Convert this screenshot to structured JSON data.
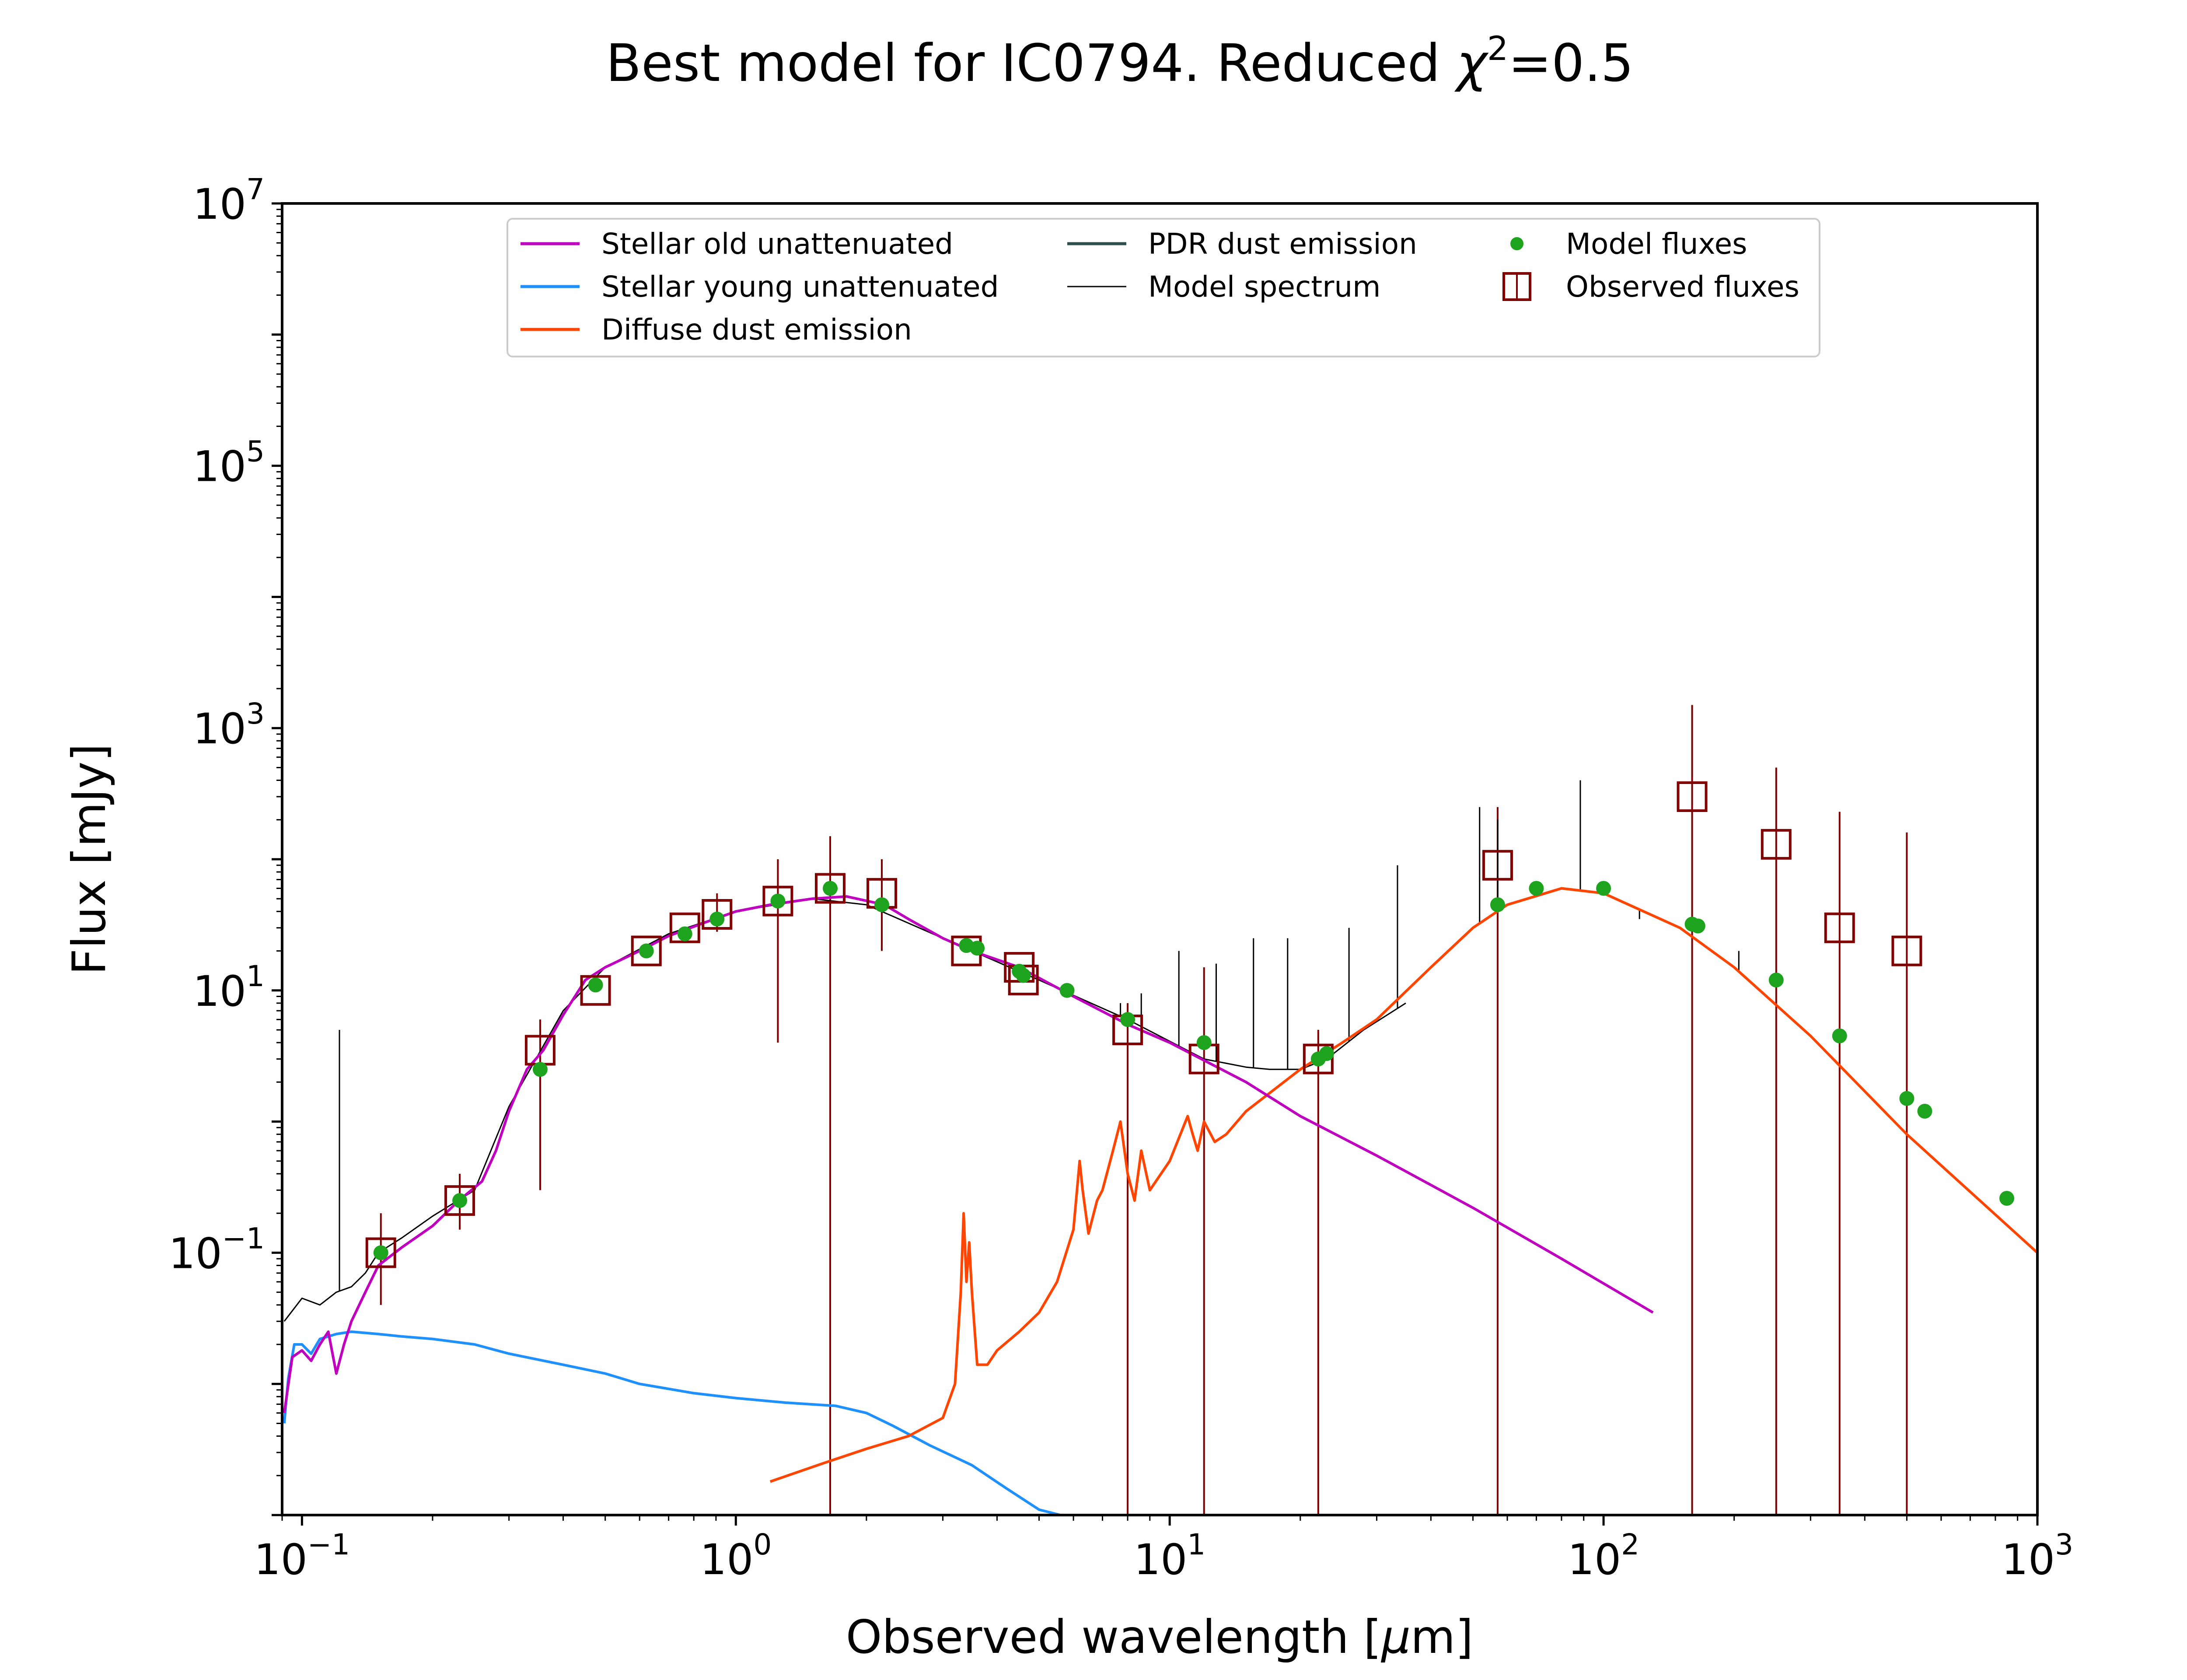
{
  "chart_data": {
    "type": "line",
    "title": "Best model for IC0794. Reduced χ²=0.5",
    "title_parts": {
      "prefix": "Best model for IC0794. Reduced ",
      "chi": "χ",
      "sup": "2",
      "suffix": "=0.5"
    },
    "xlabel": "Observed wavelength [μm]",
    "xlabel_parts": {
      "prefix": "Observed wavelength [",
      "mu": "μ",
      "suffix": "m]"
    },
    "ylabel": "Flux [mJy]",
    "xscale": "log",
    "yscale": "log",
    "xlim": [
      0.09,
      1000
    ],
    "ylim": [
      0.001,
      10000000
    ],
    "x_ticks": [
      {
        "value": 0.1,
        "base": "10",
        "exp": "−1"
      },
      {
        "value": 1,
        "base": "10",
        "exp": "0"
      },
      {
        "value": 10,
        "base": "10",
        "exp": "1"
      },
      {
        "value": 100,
        "base": "10",
        "exp": "2"
      },
      {
        "value": 1000,
        "base": "10",
        "exp": "3"
      }
    ],
    "y_ticks": [
      {
        "value": 0.1,
        "base": "10",
        "exp": "−1"
      },
      {
        "value": 10,
        "base": "10",
        "exp": "1"
      },
      {
        "value": 1000,
        "base": "10",
        "exp": "3"
      },
      {
        "value": 100000,
        "base": "10",
        "exp": "5"
      },
      {
        "value": 10000000,
        "base": "10",
        "exp": "7"
      }
    ],
    "grid": false,
    "legend_position": "top-center",
    "colors": {
      "stellar_old": "#bf00bf",
      "stellar_young": "#1e90ff",
      "diffuse_dust": "#ff4500",
      "pdr_dust": "#2f4f4f",
      "model_spectrum": "#000000",
      "model_fluxes": "#1ea31e",
      "observed_fluxes": "#800000"
    },
    "legend": [
      {
        "key": "stellar_old",
        "label": "Stellar old unattenuated",
        "kind": "line"
      },
      {
        "key": "stellar_young",
        "label": "Stellar young unattenuated",
        "kind": "line"
      },
      {
        "key": "diffuse_dust",
        "label": "Diffuse dust emission",
        "kind": "line"
      },
      {
        "key": "pdr_dust",
        "label": "PDR dust emission",
        "kind": "line"
      },
      {
        "key": "model_spectrum",
        "label": "Model spectrum",
        "kind": "thin-line"
      },
      {
        "key": "model_fluxes",
        "label": "Model fluxes",
        "kind": "dot"
      },
      {
        "key": "observed_fluxes",
        "label": "Observed fluxes",
        "kind": "square"
      }
    ],
    "series": [
      {
        "key": "stellar_old",
        "name": "Stellar old unattenuated",
        "x": [
          0.091,
          0.095,
          0.1,
          0.105,
          0.11,
          0.115,
          0.12,
          0.125,
          0.13,
          0.14,
          0.15,
          0.17,
          0.2,
          0.23,
          0.26,
          0.28,
          0.3,
          0.33,
          0.36,
          0.4,
          0.45,
          0.5,
          0.6,
          0.7,
          0.85,
          1.0,
          1.2,
          1.5,
          1.8,
          2.2,
          2.5,
          3.0,
          3.5,
          4.5,
          6.0,
          8.0,
          10,
          15,
          20,
          30,
          50,
          80,
          130
        ],
        "y": [
          0.006,
          0.016,
          0.018,
          0.015,
          0.02,
          0.025,
          0.012,
          0.02,
          0.03,
          0.05,
          0.08,
          0.11,
          0.16,
          0.25,
          0.35,
          0.6,
          1.2,
          2.5,
          3.5,
          6.5,
          12,
          15,
          20,
          26,
          33,
          40,
          45,
          50,
          52,
          45,
          35,
          25,
          20,
          15,
          9,
          5.5,
          4,
          2,
          1.1,
          0.55,
          0.22,
          0.09,
          0.035
        ]
      },
      {
        "key": "stellar_young",
        "name": "Stellar young unattenuated",
        "x": [
          0.091,
          0.093,
          0.096,
          0.1,
          0.105,
          0.11,
          0.12,
          0.13,
          0.15,
          0.17,
          0.2,
          0.25,
          0.3,
          0.4,
          0.5,
          0.6,
          0.8,
          1.0,
          1.3,
          1.7,
          2.0,
          2.3,
          2.8,
          3.5,
          4.2,
          5.0,
          5.6
        ],
        "y": [
          0.005,
          0.011,
          0.02,
          0.02,
          0.017,
          0.022,
          0.024,
          0.025,
          0.024,
          0.023,
          0.022,
          0.02,
          0.017,
          0.014,
          0.012,
          0.01,
          0.0085,
          0.0078,
          0.0072,
          0.0068,
          0.006,
          0.0048,
          0.0034,
          0.0024,
          0.0016,
          0.0011,
          0.001
        ]
      },
      {
        "key": "diffuse_dust",
        "name": "Diffuse dust emission",
        "x": [
          1.2,
          1.6,
          2.0,
          2.5,
          3.0,
          3.2,
          3.3,
          3.35,
          3.4,
          3.45,
          3.5,
          3.6,
          3.8,
          4.0,
          4.5,
          5.0,
          5.5,
          6.0,
          6.2,
          6.3,
          6.5,
          6.8,
          7.0,
          7.4,
          7.7,
          8.0,
          8.3,
          8.6,
          9.0,
          10,
          11,
          11.3,
          11.6,
          12.0,
          12.7,
          13.5,
          15,
          20,
          25,
          30,
          40,
          50,
          60,
          80,
          100,
          150,
          200,
          300,
          500,
          1000
        ],
        "y": [
          0.0018,
          0.0025,
          0.0032,
          0.004,
          0.0055,
          0.01,
          0.05,
          0.2,
          0.06,
          0.12,
          0.05,
          0.014,
          0.014,
          0.018,
          0.025,
          0.035,
          0.06,
          0.15,
          0.5,
          0.3,
          0.14,
          0.25,
          0.3,
          0.6,
          1.0,
          0.4,
          0.25,
          0.6,
          0.3,
          0.5,
          1.1,
          0.8,
          0.6,
          1.0,
          0.7,
          0.8,
          1.2,
          2.5,
          4,
          6,
          15,
          30,
          45,
          60,
          55,
          30,
          15,
          4.5,
          0.8,
          0.1
        ]
      },
      {
        "key": "model_spectrum",
        "name": "Model spectrum",
        "x": [
          0.091,
          0.1,
          0.11,
          0.12,
          0.13,
          0.14,
          0.15,
          0.17,
          0.2,
          0.25,
          0.3,
          0.4,
          0.5,
          0.7,
          1.0,
          1.5,
          2.0,
          3.0,
          5.0,
          8.0,
          12,
          15,
          17,
          20,
          23,
          28,
          35
        ],
        "y": [
          0.03,
          0.045,
          0.04,
          0.05,
          0.055,
          0.07,
          0.1,
          0.13,
          0.19,
          0.3,
          1.3,
          7,
          15,
          27,
          40,
          50,
          45,
          25,
          12,
          6,
          3,
          2.6,
          2.5,
          2.5,
          3,
          5,
          8
        ]
      }
    ],
    "emission_lines": [
      {
        "x": 0.122,
        "y": 5
      },
      {
        "x": 7.7,
        "y": 8
      },
      {
        "x": 8.6,
        "y": 9.5
      },
      {
        "x": 10.5,
        "y": 20
      },
      {
        "x": 12.8,
        "y": 16
      },
      {
        "x": 15.6,
        "y": 25
      },
      {
        "x": 18.7,
        "y": 25
      },
      {
        "x": 25.9,
        "y": 30
      },
      {
        "x": 33.5,
        "y": 90
      },
      {
        "x": 51.8,
        "y": 250
      },
      {
        "x": 57,
        "y": 200
      },
      {
        "x": 88.4,
        "y": 400
      },
      {
        "x": 121,
        "y": 35
      },
      {
        "x": 205,
        "y": 20
      }
    ],
    "model_fluxes": {
      "x": [
        0.152,
        0.231,
        0.354,
        0.475,
        0.622,
        0.763,
        0.905,
        1.25,
        1.65,
        2.17,
        3.4,
        3.6,
        4.5,
        4.6,
        5.8,
        8.0,
        12,
        22,
        23,
        57,
        70,
        100,
        160,
        165,
        250,
        350,
        500,
        550,
        850
      ],
      "y": [
        0.1,
        0.25,
        2.5,
        11,
        20,
        27,
        35,
        48,
        60,
        45,
        22,
        21,
        14,
        13,
        10,
        6,
        4,
        3,
        3.3,
        45,
        60,
        60,
        32,
        31,
        12,
        4.5,
        1.5,
        1.2,
        0.26
      ]
    },
    "observed_fluxes": [
      {
        "x": 0.152,
        "y": 0.1,
        "y_low": 0.04,
        "y_high": 0.2
      },
      {
        "x": 0.231,
        "y": 0.25,
        "y_low": 0.15,
        "y_high": 0.4
      },
      {
        "x": 0.354,
        "y": 3.5,
        "y_low": 0.3,
        "y_high": 6
      },
      {
        "x": 0.475,
        "y": 10
      },
      {
        "x": 0.622,
        "y": 20
      },
      {
        "x": 0.763,
        "y": 30
      },
      {
        "x": 0.905,
        "y": 38,
        "y_low": 28,
        "y_high": 55
      },
      {
        "x": 1.25,
        "y": 48,
        "y_low": 4,
        "y_high": 100
      },
      {
        "x": 1.65,
        "y": 60,
        "y_low": 0.001,
        "y_high": 150
      },
      {
        "x": 2.17,
        "y": 55,
        "y_low": 20,
        "y_high": 100
      },
      {
        "x": 3.4,
        "y": 20
      },
      {
        "x": 4.5,
        "y": 15
      },
      {
        "x": 4.6,
        "y": 12
      },
      {
        "x": 8.0,
        "y": 5,
        "y_low": 0.001,
        "y_high": 8
      },
      {
        "x": 12,
        "y": 3,
        "y_low": 0.001,
        "y_high": 15
      },
      {
        "x": 22,
        "y": 3,
        "y_low": 0.001,
        "y_high": 5
      },
      {
        "x": 57,
        "y": 90,
        "y_low": 0.001,
        "y_high": 250
      },
      {
        "x": 160,
        "y": 300,
        "y_low": 0.001,
        "y_high": 1500
      },
      {
        "x": 250,
        "y": 130,
        "y_low": 0.001,
        "y_high": 500
      },
      {
        "x": 350,
        "y": 30,
        "y_low": 0.001,
        "y_high": 230
      },
      {
        "x": 500,
        "y": 20,
        "y_low": 0.001,
        "y_high": 160
      }
    ]
  }
}
